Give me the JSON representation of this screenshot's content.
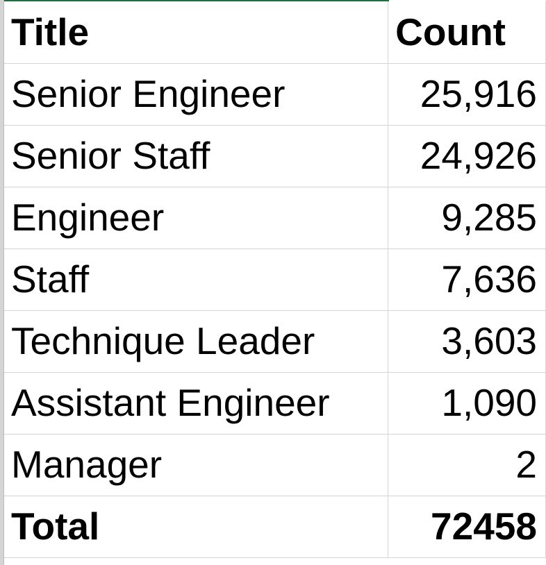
{
  "table": {
    "headers": {
      "title": "Title",
      "count": "Count"
    },
    "rows": [
      {
        "title": "Senior Engineer",
        "count": "25,916"
      },
      {
        "title": "Senior Staff",
        "count": "24,926"
      },
      {
        "title": "Engineer",
        "count": "9,285"
      },
      {
        "title": "Staff",
        "count": "7,636"
      },
      {
        "title": "Technique Leader",
        "count": "3,603"
      },
      {
        "title": "Assistant Engineer",
        "count": "1,090"
      },
      {
        "title": "Manager",
        "count": "2"
      }
    ],
    "total": {
      "label": "Total",
      "value": "72458"
    }
  },
  "colors": {
    "gridline": "#d4d4d4",
    "selection_edge": "#1f6e43",
    "text": "#000000"
  }
}
